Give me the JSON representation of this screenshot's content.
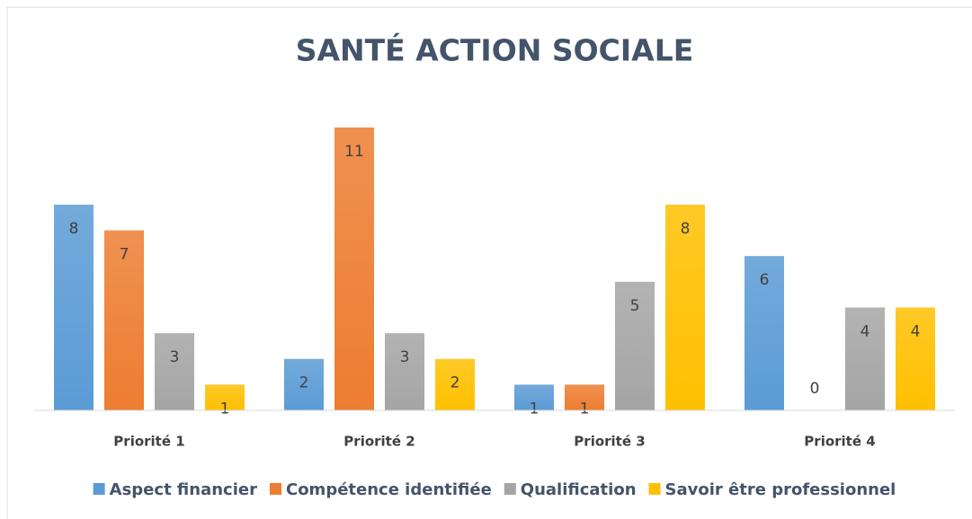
{
  "chart_data": {
    "type": "bar",
    "title": "SANTÉ ACTION SOCIALE",
    "categories": [
      "Priorité 1",
      "Priorité 2",
      "Priorité 3",
      "Priorité 4"
    ],
    "series": [
      {
        "name": "Aspect financier",
        "color": "#5b9bd5",
        "values": [
          8,
          2,
          1,
          6
        ]
      },
      {
        "name": "Compétence identifiée",
        "color": "#ed7d31",
        "values": [
          7,
          11,
          1,
          0
        ]
      },
      {
        "name": "Qualification",
        "color": "#a5a5a5",
        "values": [
          3,
          3,
          5,
          4
        ]
      },
      {
        "name": "Savoir être professionnel",
        "color": "#ffc000",
        "values": [
          1,
          2,
          8,
          4
        ]
      }
    ],
    "legend": "bottom"
  }
}
